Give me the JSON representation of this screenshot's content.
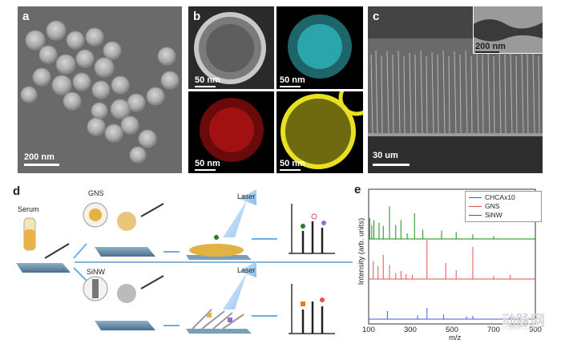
{
  "panels": {
    "a": {
      "label": "a",
      "scale": "200 nm"
    },
    "b": {
      "label": "b",
      "scales": [
        "50 nm",
        "50 nm",
        "50 nm",
        "50 nm"
      ]
    },
    "c": {
      "label": "c",
      "scale": "30 um",
      "inset_scale": "200 nm"
    },
    "d": {
      "label": "d",
      "serum": "Serum",
      "gns": "GNS",
      "sinw": "SiNW",
      "laser1": "Laser",
      "laser2": "Laser"
    },
    "e": {
      "label": "e"
    }
  },
  "chart_data": {
    "type": "line",
    "xlabel": "m/z",
    "ylabel": "Intensity (arb. units)",
    "xlim": [
      100,
      900
    ],
    "xticks": [
      "100",
      "300",
      "500",
      "700",
      "900"
    ],
    "series": [
      {
        "name": "CHCAx10",
        "color": "#4a5adb",
        "peaks": [
          [
            190,
            0.25
          ],
          [
            335,
            0.12
          ],
          [
            380,
            0.35
          ],
          [
            460,
            0.15
          ],
          [
            570,
            0.08
          ],
          [
            600,
            0.1
          ],
          [
            780,
            0.08
          ]
        ]
      },
      {
        "name": "GNS",
        "color": "#e05050",
        "peaks": [
          [
            122,
            0.45
          ],
          [
            145,
            0.32
          ],
          [
            170,
            0.6
          ],
          [
            200,
            0.35
          ],
          [
            230,
            0.15
          ],
          [
            255,
            0.2
          ],
          [
            280,
            0.12
          ],
          [
            310,
            0.1
          ],
          [
            380,
            0.98
          ],
          [
            470,
            0.4
          ],
          [
            520,
            0.22
          ],
          [
            600,
            0.8
          ],
          [
            700,
            0.08
          ],
          [
            780,
            0.1
          ]
        ]
      },
      {
        "name": "SiNW",
        "color": "#1a8a1a",
        "peaks": [
          [
            105,
            0.45
          ],
          [
            115,
            0.3
          ],
          [
            125,
            0.4
          ],
          [
            150,
            0.35
          ],
          [
            170,
            0.28
          ],
          [
            200,
            0.7
          ],
          [
            230,
            0.3
          ],
          [
            255,
            0.4
          ],
          [
            285,
            0.12
          ],
          [
            320,
            0.55
          ],
          [
            360,
            0.2
          ],
          [
            450,
            0.18
          ],
          [
            520,
            0.15
          ],
          [
            600,
            0.1
          ],
          [
            700,
            0.06
          ]
        ]
      }
    ]
  },
  "colors": {
    "accent": "#5b9bd5",
    "cyan": "#35d0d8",
    "red": "#d01818",
    "yellow": "#e8e020"
  },
  "watermark": {
    "text": "动脉网",
    "sub": "VCBEAT.COM"
  }
}
